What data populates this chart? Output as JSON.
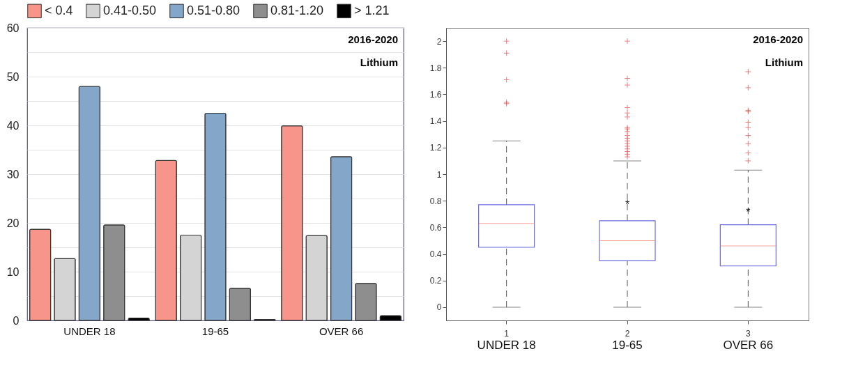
{
  "chart_data": [
    {
      "type": "bar",
      "categories": [
        "UNDER 18",
        "19-65",
        "OVER 66"
      ],
      "series": [
        {
          "name": "< 0.4",
          "color": "#f8958a",
          "values": [
            18.7,
            32.8,
            39.9
          ]
        },
        {
          "name": "0.41-0.50",
          "color": "#d4d4d4",
          "values": [
            12.7,
            17.5,
            17.4
          ]
        },
        {
          "name": "0.51-0.80",
          "color": "#83a6c9",
          "values": [
            48,
            42.5,
            33.6
          ]
        },
        {
          "name": "0.81-1.20",
          "color": "#8e8e8e",
          "values": [
            19.6,
            6.6,
            7.6
          ]
        },
        {
          "name": "> 1.21",
          "color": "#000000",
          "values": [
            0.5,
            0.2,
            1.0
          ]
        }
      ],
      "ylim": [
        0,
        60
      ],
      "yticks": [
        0,
        {
          "value": 5,
          "label": null
        },
        10,
        {
          "value": 15,
          "label": null
        },
        20,
        {
          "value": 25,
          "label": null
        },
        30,
        {
          "value": 35,
          "label": null
        },
        40,
        {
          "value": 45,
          "label": null
        },
        50,
        {
          "value": 55,
          "label": null
        },
        60
      ],
      "grid": "y",
      "legend": "top",
      "annotations": [
        "2016-2020",
        "Lithium"
      ]
    },
    {
      "type": "box",
      "categories": [
        "1",
        "2",
        "3"
      ],
      "series": [
        {
          "color": "#6b6bde",
          "boxes": [
            {
              "low": 0,
              "q1": 0.45,
              "median": 0.63,
              "q3": 0.77,
              "high": 1.25,
              "outliers": [
                1.53,
                1.54,
                1.71,
                1.91,
                2.0
              ]
            },
            {
              "low": 0,
              "q1": 0.35,
              "median": 0.5,
              "q3": 0.65,
              "high": 1.1,
              "outliers": [
                1.13,
                1.15,
                1.17,
                1.19,
                1.21,
                1.23,
                1.25,
                1.27,
                1.29,
                1.32,
                1.34,
                1.35,
                1.43,
                1.46,
                1.5,
                1.67,
                1.72,
                2.0
              ]
            },
            {
              "low": 0,
              "q1": 0.31,
              "median": 0.46,
              "q3": 0.62,
              "high": 1.03,
              "outliers": [
                1.1,
                1.16,
                1.23,
                1.29,
                1.35,
                1.39,
                1.47,
                1.48,
                1.65,
                1.77
              ]
            }
          ]
        }
      ],
      "ylim": [
        -0.1,
        2.1
      ],
      "yticks": [
        0,
        0.2,
        0.4,
        0.6,
        0.8,
        1,
        1.2,
        1.4,
        1.6,
        1.8,
        2
      ],
      "grid": false,
      "annotations": [
        "2016-2020",
        "Lithium",
        {
          "text": "*",
          "x": "2",
          "y": 0.77
        },
        {
          "text": "*",
          "x": "3",
          "y": 0.71
        },
        "UNDER 18",
        "19-65",
        "OVER 66"
      ]
    }
  ]
}
